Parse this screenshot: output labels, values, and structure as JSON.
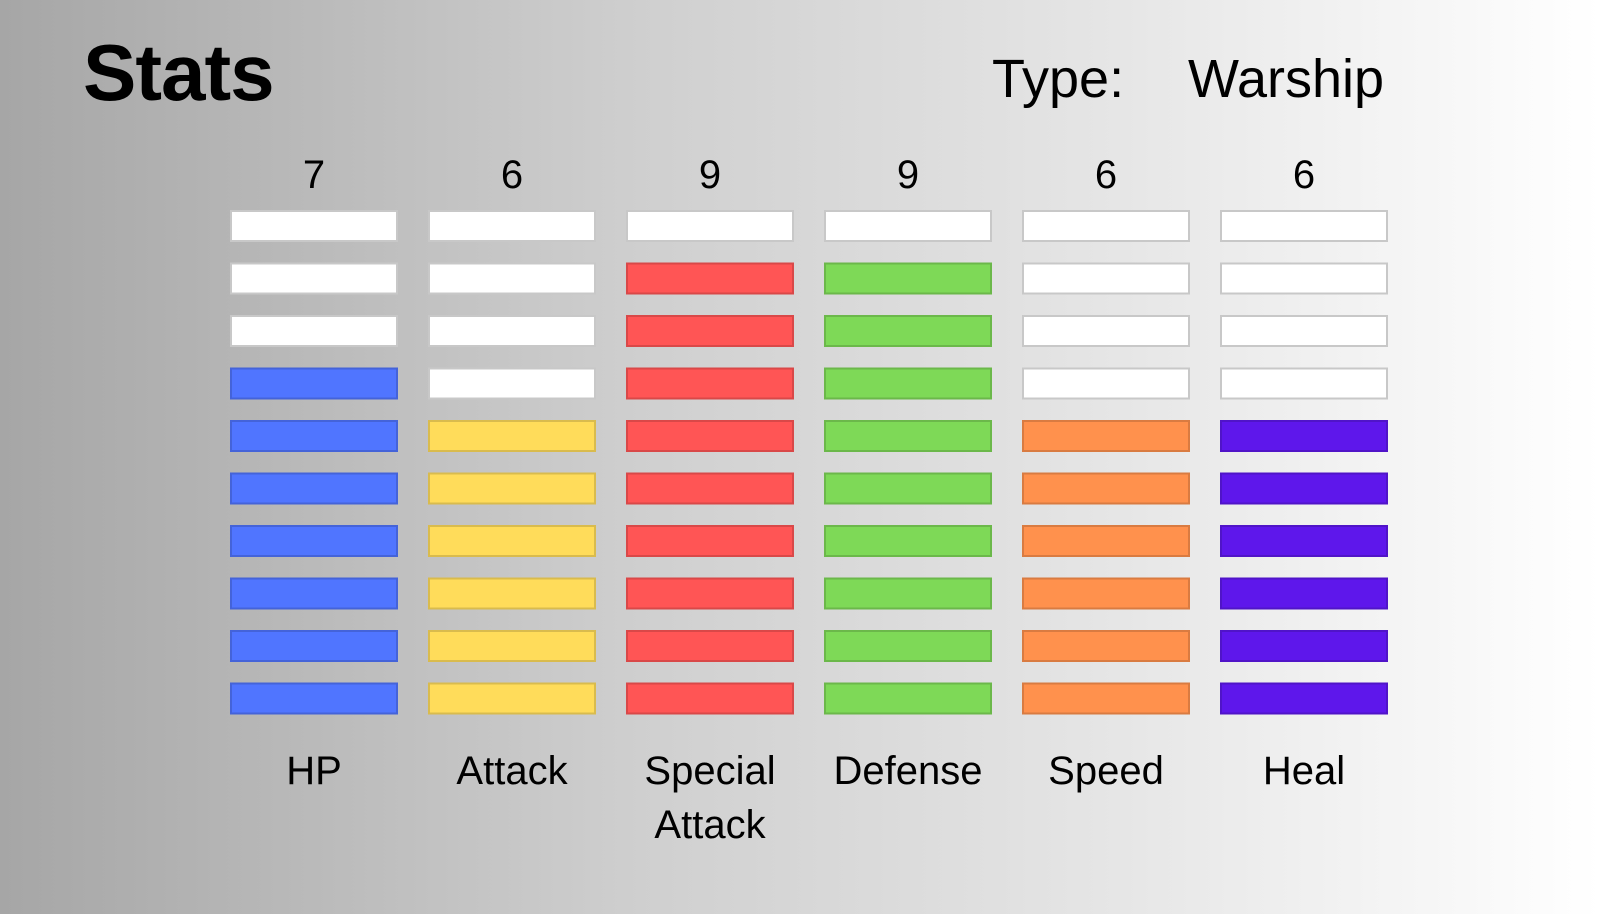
{
  "header": {
    "title": "Stats",
    "type_label": "Type:",
    "type_value": "Warship"
  },
  "chart_data": {
    "type": "bar",
    "segments_total": 10,
    "categories": [
      "HP",
      "Attack",
      "Special Attack",
      "Defense",
      "Speed",
      "Heal"
    ],
    "values": [
      7,
      6,
      9,
      9,
      6,
      6
    ],
    "colors": [
      "#5075ff",
      "#ffdc5a",
      "#ff5555",
      "#7ed957",
      "#ff914d",
      "#5e17eb"
    ],
    "empty_color": "#ffffff"
  }
}
